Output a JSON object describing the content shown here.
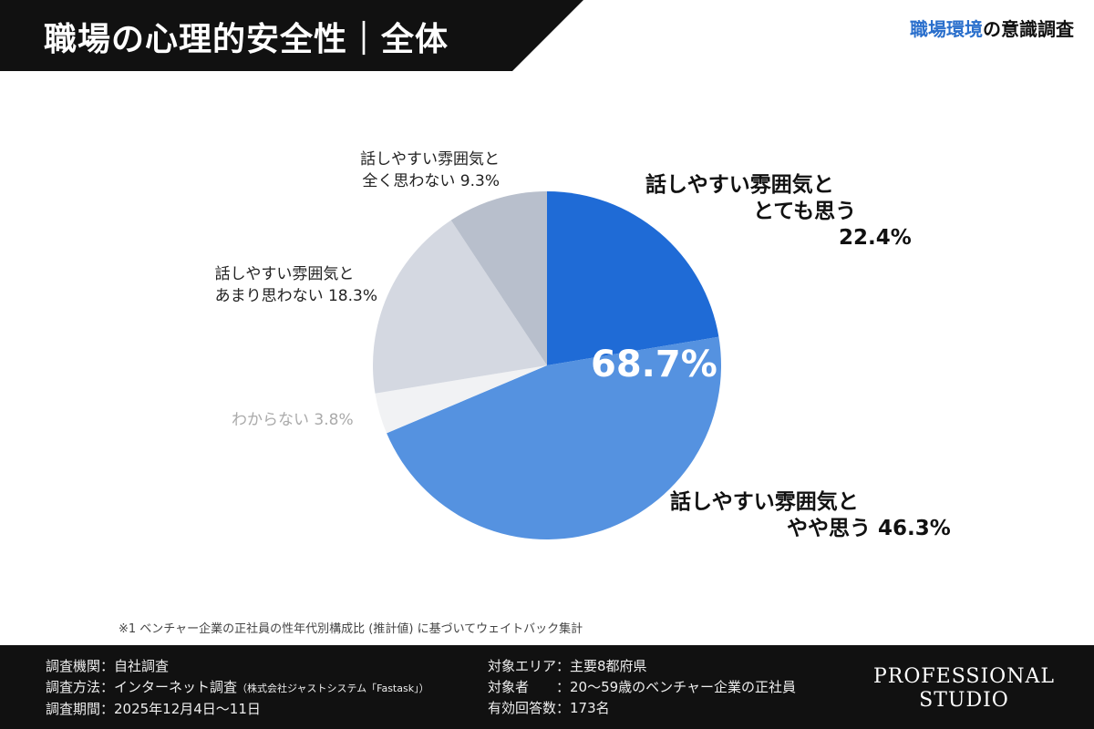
{
  "header": {
    "title": "職場の心理的安全性｜全体",
    "brand_highlight": "職場環境",
    "brand_rest": "の意識調査"
  },
  "chart_data": {
    "type": "pie",
    "start": "top",
    "direction": "clockwise",
    "slices": [
      {
        "label_line1": "話しやすい雰囲気と",
        "label_line2": "とても思う",
        "value_label": "22.4%",
        "value": 22.4,
        "color": "#1f6bd6"
      },
      {
        "label_line1": "話しやすい雰囲気と",
        "label_line2": "やや思う",
        "value_label": "46.3%",
        "value": 46.3,
        "color": "#5592e0"
      },
      {
        "label_line1": "わからない",
        "label_line2": "",
        "value_label": "3.8%",
        "value": 3.8,
        "color": "#f1f2f4"
      },
      {
        "label_line1": "話しやすい雰囲気と",
        "label_line2": "あまり思わない",
        "value_label": "18.3%",
        "value": 18.3,
        "color": "#d4d8e1"
      },
      {
        "label_line1": "話しやすい雰囲気と",
        "label_line2": "全く思わない",
        "value_label": "9.3%",
        "value": 9.3,
        "color": "#b8bfcc"
      }
    ],
    "center_annotation": "68.7%"
  },
  "note": "※1 ベンチャー企業の正社員の性年代別構成比 (推計値) に基づいてウェイトバック集計",
  "footer": {
    "agency": "調査機関：自社調査",
    "method": "調査方法：インターネット調査",
    "method_note": "（株式会社ジャストシステム「Fastask」）",
    "period": "調査期間：2025年12月4日〜11日",
    "area": "対象エリア：主要8都府県",
    "target": "対象者　　：20〜59歳のベンチャー企業の正社員",
    "responses": "有効回答数：173名",
    "logo_line1": "PROFESSIONAL",
    "logo_line2": "STUDIO"
  }
}
